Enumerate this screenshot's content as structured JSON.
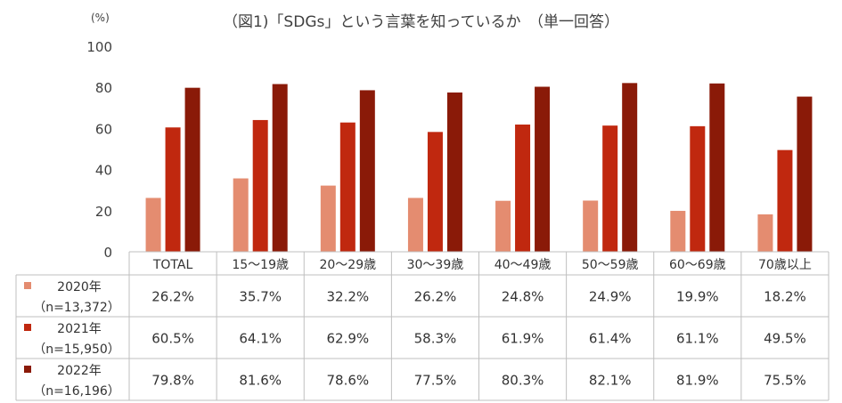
{
  "title": "（図1)「SDGs」という言葉を知っているか　（単一回答）",
  "unit": "(%)",
  "colors": {
    "s2020": "#e48c70",
    "s2021": "#c0280f",
    "s2022": "#8a1a08",
    "grid": "#bfbfbf",
    "table": "#bfbfbf"
  },
  "chart_data": {
    "type": "bar",
    "title": "（図1)「SDGs」という言葉を知っているか　（単一回答）",
    "ylabel": "(%)",
    "ylim": [
      0,
      100
    ],
    "yticks": [
      "0",
      "20",
      "40",
      "60",
      "80",
      "100"
    ],
    "grid": false,
    "legend": "data-table-left",
    "categories": [
      "TOTAL",
      "15～19歳",
      "20～29歳",
      "30～39歳",
      "40～49歳",
      "50～59歳",
      "60～69歳",
      "70歳以上"
    ],
    "series": [
      {
        "name": "2020年",
        "sample": "（n=13,372）",
        "values": [
          26.2,
          35.7,
          32.2,
          26.2,
          24.8,
          24.9,
          19.9,
          18.2
        ],
        "labels": [
          "26.2%",
          "35.7%",
          "32.2%",
          "26.2%",
          "24.8%",
          "24.9%",
          "19.9%",
          "18.2%"
        ]
      },
      {
        "name": "2021年",
        "sample": "（n=15,950）",
        "values": [
          60.5,
          64.1,
          62.9,
          58.3,
          61.9,
          61.4,
          61.1,
          49.5
        ],
        "labels": [
          "60.5%",
          "64.1%",
          "62.9%",
          "58.3%",
          "61.9%",
          "61.4%",
          "61.1%",
          "49.5%"
        ]
      },
      {
        "name": "2022年",
        "sample": "（n=16,196）",
        "values": [
          79.8,
          81.6,
          78.6,
          77.5,
          80.3,
          82.1,
          81.9,
          75.5
        ],
        "labels": [
          "79.8%",
          "81.6%",
          "78.6%",
          "77.5%",
          "80.3%",
          "82.1%",
          "81.9%",
          "75.5%"
        ]
      }
    ]
  }
}
